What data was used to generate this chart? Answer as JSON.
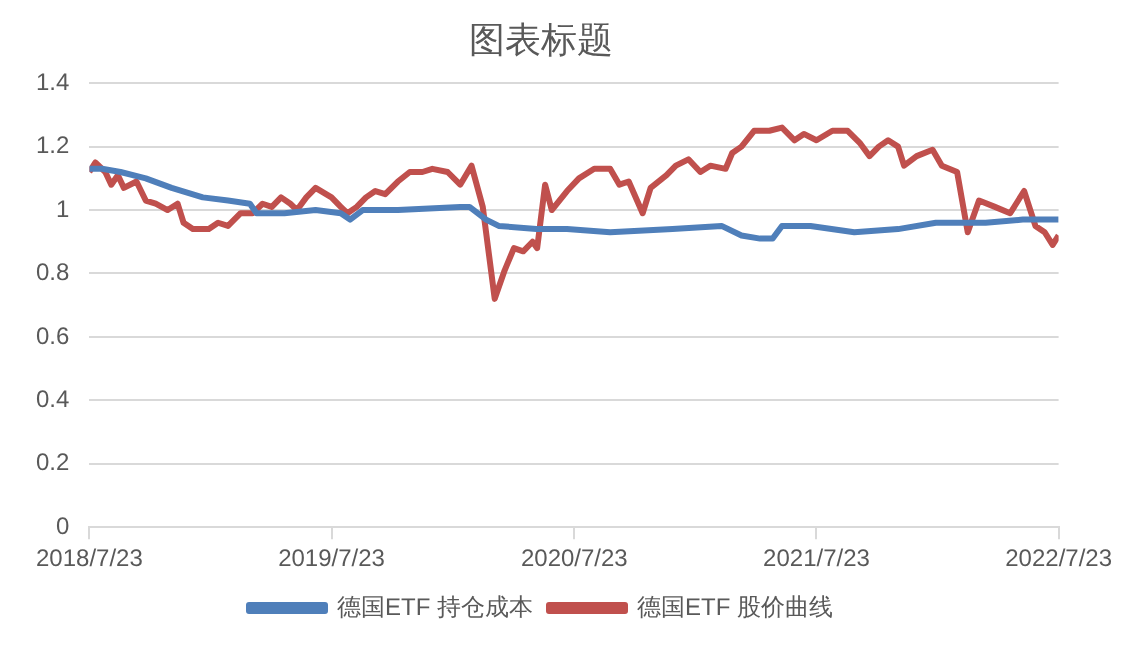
{
  "chart_data": {
    "type": "line",
    "title": "图表标题",
    "xlim": [
      "2018-07-23",
      "2022-07-23"
    ],
    "xticks": [
      {
        "value": "2018-07-23",
        "label": "2018/7/23"
      },
      {
        "value": "2019-07-23",
        "label": "2019/7/23"
      },
      {
        "value": "2020-07-23",
        "label": "2020/7/23"
      },
      {
        "value": "2021-07-23",
        "label": "2021/7/23"
      },
      {
        "value": "2022-07-23",
        "label": "2022/7/23"
      }
    ],
    "ylim": [
      0,
      1.4
    ],
    "yticks": [
      0,
      0.2,
      0.4,
      0.6,
      0.8,
      1,
      1.2,
      1.4
    ],
    "grid": "y",
    "legend": "bottom",
    "marker": "none",
    "line_style": "solid",
    "series": [
      {
        "name": "德国ETF 持仓成本",
        "color": "#4f7fba",
        "x": [
          "2018-07-23",
          "2018-08-11",
          "2018-09-08",
          "2018-10-16",
          "2018-11-24",
          "2019-01-10",
          "2019-02-17",
          "2019-03-22",
          "2019-04-01",
          "2019-05-13",
          "2019-06-29",
          "2019-08-06",
          "2019-08-20",
          "2019-09-08",
          "2019-10-31",
          "2020-02-02",
          "2020-02-16",
          "2020-03-12",
          "2020-03-31",
          "2020-05-27",
          "2020-07-12",
          "2020-09-15",
          "2020-12-18",
          "2021-03-02",
          "2021-04-01",
          "2021-04-29",
          "2021-05-18",
          "2021-06-01",
          "2021-07-14",
          "2021-09-18",
          "2021-11-23",
          "2022-01-19",
          "2022-04-04",
          "2022-05-30",
          "2022-07-23"
        ],
        "values": [
          1.13,
          1.13,
          1.12,
          1.1,
          1.07,
          1.04,
          1.03,
          1.02,
          0.99,
          0.99,
          1.0,
          0.99,
          0.97,
          1.0,
          1.0,
          1.01,
          1.01,
          0.97,
          0.95,
          0.94,
          0.94,
          0.93,
          0.94,
          0.95,
          0.92,
          0.91,
          0.91,
          0.95,
          0.95,
          0.93,
          0.94,
          0.96,
          0.96,
          0.97,
          0.97
        ]
      },
      {
        "name": "德国ETF 股价曲线",
        "color": "#c0504d",
        "x": [
          "2018-07-23",
          "2018-08-01",
          "2018-08-16",
          "2018-08-25",
          "2018-09-04",
          "2018-09-13",
          "2018-10-02",
          "2018-10-16",
          "2018-10-31",
          "2018-11-18",
          "2018-12-03",
          "2018-12-12",
          "2018-12-26",
          "2019-01-19",
          "2019-02-02",
          "2019-02-17",
          "2019-03-08",
          "2019-03-26",
          "2019-04-10",
          "2019-04-24",
          "2019-05-08",
          "2019-05-22",
          "2019-06-01",
          "2019-06-15",
          "2019-06-29",
          "2019-07-23",
          "2019-08-06",
          "2019-08-16",
          "2019-08-30",
          "2019-09-13",
          "2019-09-27",
          "2019-10-12",
          "2019-10-31",
          "2019-11-18",
          "2019-12-07",
          "2019-12-22",
          "2020-01-14",
          "2020-02-02",
          "2020-02-19",
          "2020-03-07",
          "2020-03-25",
          "2020-04-09",
          "2020-04-23",
          "2020-05-07",
          "2020-05-21",
          "2020-05-28",
          "2020-06-09",
          "2020-06-19",
          "2020-07-12",
          "2020-07-30",
          "2020-08-22",
          "2020-09-15",
          "2020-09-29",
          "2020-10-13",
          "2020-11-03",
          "2020-11-15",
          "2020-12-09",
          "2020-12-23",
          "2021-01-11",
          "2021-01-29",
          "2021-02-13",
          "2021-03-08",
          "2021-03-18",
          "2021-04-01",
          "2021-04-20",
          "2021-05-13",
          "2021-06-01",
          "2021-06-20",
          "2021-07-04",
          "2021-07-23",
          "2021-08-16",
          "2021-09-08",
          "2021-09-27",
          "2021-10-11",
          "2021-10-25",
          "2021-11-08",
          "2021-11-23",
          "2021-12-02",
          "2021-12-21",
          "2022-01-14",
          "2022-01-28",
          "2022-02-20",
          "2022-03-08",
          "2022-03-25",
          "2022-04-18",
          "2022-05-11",
          "2022-06-01",
          "2022-06-18",
          "2022-07-02",
          "2022-07-14",
          "2022-07-23"
        ],
        "values": [
          1.12,
          1.15,
          1.12,
          1.08,
          1.11,
          1.07,
          1.09,
          1.03,
          1.02,
          1.0,
          1.02,
          0.96,
          0.94,
          0.94,
          0.96,
          0.95,
          0.99,
          0.99,
          1.02,
          1.01,
          1.04,
          1.02,
          1.0,
          1.04,
          1.07,
          1.04,
          1.01,
          0.99,
          1.01,
          1.04,
          1.06,
          1.05,
          1.09,
          1.12,
          1.12,
          1.13,
          1.12,
          1.08,
          1.14,
          1.01,
          0.72,
          0.81,
          0.88,
          0.87,
          0.9,
          0.88,
          1.08,
          1.0,
          1.06,
          1.1,
          1.13,
          1.13,
          1.08,
          1.09,
          0.99,
          1.07,
          1.11,
          1.14,
          1.16,
          1.12,
          1.14,
          1.13,
          1.18,
          1.2,
          1.25,
          1.25,
          1.26,
          1.22,
          1.24,
          1.22,
          1.25,
          1.25,
          1.21,
          1.17,
          1.2,
          1.22,
          1.2,
          1.14,
          1.17,
          1.19,
          1.14,
          1.12,
          0.93,
          1.03,
          1.01,
          0.99,
          1.06,
          0.95,
          0.93,
          0.89,
          0.92
        ]
      }
    ]
  }
}
